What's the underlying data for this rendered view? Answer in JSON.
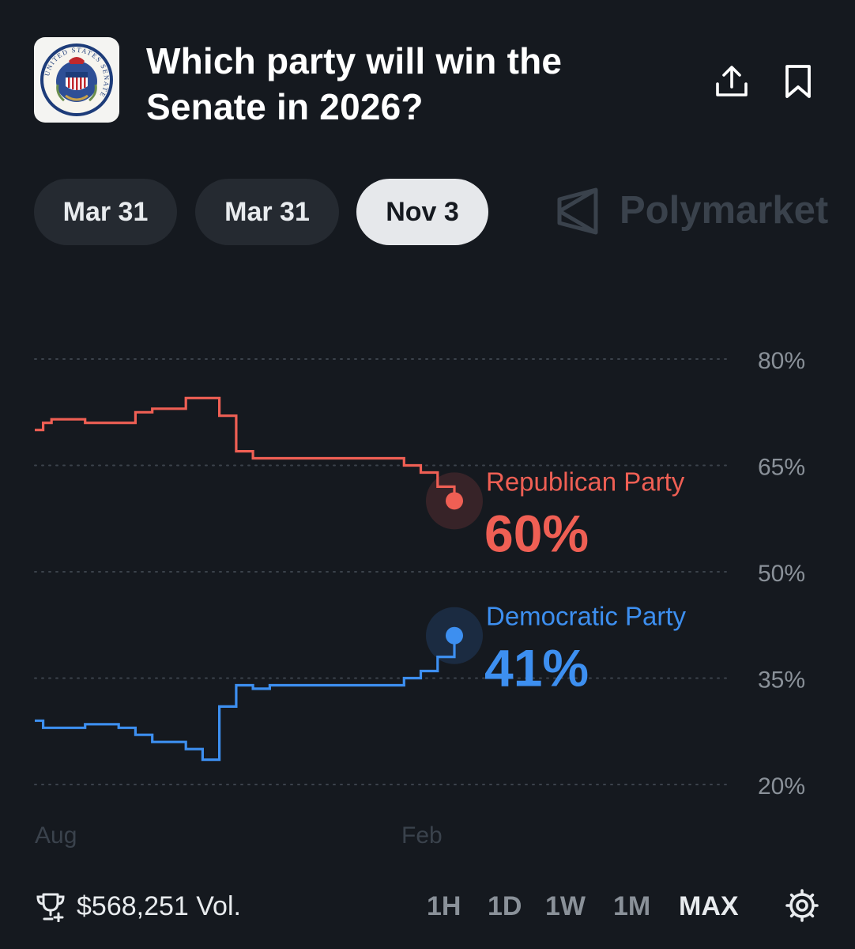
{
  "header": {
    "title_line1": "Which party will win the",
    "title_line2": "Senate in 2026?",
    "seal_text": "UNITED STATES SENATE",
    "seal_motto": "E PLURIBUS UNUM"
  },
  "tabs": [
    {
      "label": "Mar 31",
      "active": false
    },
    {
      "label": "Mar 31",
      "active": false
    },
    {
      "label": "Nov 3",
      "active": true
    }
  ],
  "brand": {
    "name": "Polymarket"
  },
  "footer": {
    "volume": "$568,251 Vol.",
    "ranges": [
      "1H",
      "1D",
      "1W",
      "1M",
      "MAX"
    ],
    "active_range": "MAX"
  },
  "chart_data": {
    "type": "line",
    "y_ticks": [
      "80%",
      "65%",
      "50%",
      "35%",
      "20%"
    ],
    "x_ticks": [
      "Aug",
      "Feb"
    ],
    "ylim": [
      20,
      80
    ],
    "grid": true,
    "x": [
      0,
      0.5,
      1,
      2,
      3,
      4,
      5,
      6,
      7,
      8,
      9,
      10,
      11,
      12,
      13,
      14,
      15,
      16,
      17,
      18,
      19,
      20,
      21,
      22,
      23,
      24,
      25
    ],
    "series": [
      {
        "name": "Republican Party",
        "label_value": "60%",
        "color": "#ef5f54",
        "values": [
          70,
          71,
          71.5,
          71.5,
          71,
          71,
          71,
          72.5,
          73,
          73,
          74.5,
          74.5,
          72,
          67,
          66,
          66,
          66,
          66,
          66,
          66,
          66,
          66,
          66,
          65,
          64,
          62,
          60
        ]
      },
      {
        "name": "Democratic Party",
        "label_value": "41%",
        "color": "#3d8ff0",
        "values": [
          29,
          28,
          28,
          28,
          28.5,
          28.5,
          28,
          27,
          26,
          26,
          25,
          23.5,
          31,
          34,
          33.5,
          34,
          34,
          34,
          34,
          34,
          34,
          34,
          34,
          35,
          36,
          38,
          41
        ]
      }
    ]
  }
}
